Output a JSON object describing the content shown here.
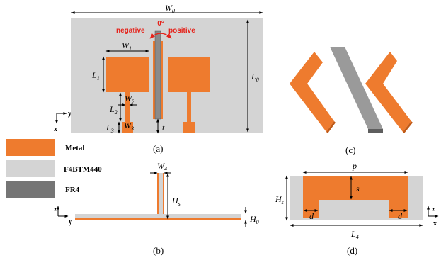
{
  "colors": {
    "metal": "#ee7b2e",
    "f4b": "#d4d4d4",
    "fr4": "#757575",
    "red": "#e5231b"
  },
  "panel_a": {
    "W0": "W",
    "W0_sub": "0",
    "L0": "L",
    "L0_sub": "0",
    "W1": "W",
    "W1_sub": "1",
    "L1": "L",
    "L1_sub": "1",
    "W2": "W",
    "W2_sub": "2",
    "L2": "L",
    "L2_sub": "2",
    "L3": "L",
    "L3_sub": "3",
    "W3": "W",
    "W3_sub": "3",
    "t": "t",
    "negative": "negative",
    "zero": "0°",
    "positive": "positive",
    "axis_x": "x",
    "axis_y": "y"
  },
  "panel_b": {
    "W4": "W",
    "W4_sub": "4",
    "Hs": "H",
    "Hs_sub": "s",
    "H0": "H",
    "H0_sub": "0",
    "axis_z": "z",
    "axis_y": "y"
  },
  "panel_d": {
    "p": "p",
    "s": "s",
    "d_left": "d",
    "d_right": "d",
    "Hs": "H",
    "Hs_sub": "s",
    "L4": "L",
    "L4_sub": "4",
    "axis_z": "z",
    "axis_x": "x"
  },
  "legend": {
    "metal": "Metal",
    "f4b": "F4BTM440",
    "fr4": "FR4"
  },
  "captions": {
    "a": "(a)",
    "b": "(b)",
    "c": "(c)",
    "d": "(d)"
  }
}
